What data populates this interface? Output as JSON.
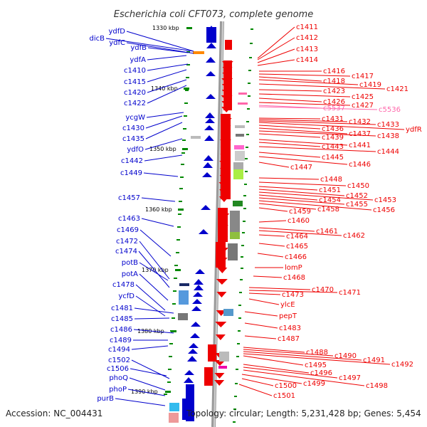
{
  "title": "Escherichia coli CFT073, complete genome",
  "footer": {
    "accession": "Accession: NC_004431",
    "topology": "Topology: circular; Length: 5,231,428 bp; Genes: 5,454"
  },
  "colors": {
    "forward": "#0000cc",
    "reverse": "#ee0000",
    "pseudo": "#ff66aa",
    "backbone": "#9a9a9a",
    "tick": "#008800",
    "rna": "#ff8800"
  },
  "scale_labels": [
    "1330 kbp",
    "1340 kbp",
    "1350 kbp",
    "1360 kbp",
    "1370 kbp",
    "1380 kbp",
    "1390 kbp"
  ],
  "left_labels": [
    "dicB",
    "ydfD",
    "ydfC",
    "ydfB",
    "ydfA",
    "c1410",
    "c1415",
    "c1420",
    "c1422",
    "ycgW",
    "c1430",
    "c1435",
    "ydfO",
    "c1442",
    "c1449",
    "c1457",
    "c1463",
    "c1469",
    "c1472",
    "c1474",
    "potB",
    "potA",
    "c1478",
    "ycfD",
    "c1481",
    "c1485",
    "c1486",
    "c1489",
    "c1494",
    "c1502",
    "c1506",
    "phoQ",
    "phoP",
    "purB"
  ],
  "right_labels": [
    "c1411",
    "c1412",
    "c1413",
    "c1414",
    "c1416",
    "c1417",
    "c1418",
    "c1419",
    "c1421",
    "c1423",
    "c1425",
    "c1426",
    "c1427",
    "c5537",
    "c5536",
    "c1431",
    "c1432",
    "c1433",
    "ydfR",
    "c1436",
    "c1437",
    "c1438",
    "c1439",
    "c1441",
    "c1443",
    "c1444",
    "c1445",
    "c1446",
    "c1447",
    "c1448",
    "c1450",
    "c1451",
    "c1452",
    "c1453",
    "c1454",
    "c1455",
    "c1456",
    "c1458",
    "c1459",
    "c1460",
    "c1461",
    "c1462",
    "c1464",
    "c1465",
    "c1466",
    "lomP",
    "c1468",
    "c1470",
    "c1471",
    "c1473",
    "ylcE",
    "pepT",
    "c1483",
    "c1487",
    "c1488",
    "c1490",
    "c1491",
    "c1492",
    "c1495",
    "c1496",
    "c1497",
    "c1498",
    "c1499",
    "c1500",
    "c1501"
  ]
}
